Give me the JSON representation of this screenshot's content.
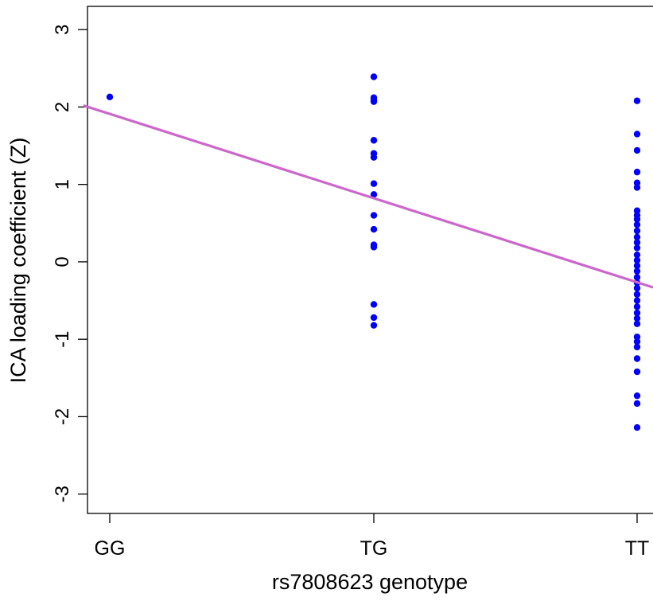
{
  "chart_data": {
    "type": "scatter",
    "title": "",
    "xlabel": "rs7808623 genotype",
    "ylabel": "ICA loading coefficient (Z)",
    "categories": [
      "GG",
      "TG",
      "TT"
    ],
    "ylim": [
      -3.25,
      3.3
    ],
    "y_ticks": [
      "-3",
      "-2",
      "-1",
      "0",
      "1",
      "2",
      "3"
    ],
    "grid": false,
    "point_color": "#0000ff",
    "line_color": "#cc66cc",
    "series": [
      {
        "points": [
          {
            "x": "GG",
            "y": 2.13
          },
          {
            "x": "TG",
            "y": 2.39
          },
          {
            "x": "TG",
            "y": 2.12
          },
          {
            "x": "TG",
            "y": 2.09
          },
          {
            "x": "TG",
            "y": 2.07
          },
          {
            "x": "TG",
            "y": 1.57
          },
          {
            "x": "TG",
            "y": 1.4
          },
          {
            "x": "TG",
            "y": 1.35
          },
          {
            "x": "TG",
            "y": 1.01
          },
          {
            "x": "TG",
            "y": 0.87
          },
          {
            "x": "TG",
            "y": 0.6
          },
          {
            "x": "TG",
            "y": 0.42
          },
          {
            "x": "TG",
            "y": 0.22
          },
          {
            "x": "TG",
            "y": 0.19
          },
          {
            "x": "TG",
            "y": -0.55
          },
          {
            "x": "TG",
            "y": -0.72
          },
          {
            "x": "TG",
            "y": -0.82
          },
          {
            "x": "TT",
            "y": 2.08
          },
          {
            "x": "TT",
            "y": 1.65
          },
          {
            "x": "TT",
            "y": 1.44
          },
          {
            "x": "TT",
            "y": 1.16
          },
          {
            "x": "TT",
            "y": 1.02
          },
          {
            "x": "TT",
            "y": 0.96
          },
          {
            "x": "TT",
            "y": 0.66
          },
          {
            "x": "TT",
            "y": 0.6
          },
          {
            "x": "TT",
            "y": 0.55
          },
          {
            "x": "TT",
            "y": 0.48
          },
          {
            "x": "TT",
            "y": 0.4
          },
          {
            "x": "TT",
            "y": 0.32
          },
          {
            "x": "TT",
            "y": 0.25
          },
          {
            "x": "TT",
            "y": 0.18
          },
          {
            "x": "TT",
            "y": 0.09
          },
          {
            "x": "TT",
            "y": 0.02
          },
          {
            "x": "TT",
            "y": -0.05
          },
          {
            "x": "TT",
            "y": -0.12
          },
          {
            "x": "TT",
            "y": -0.2
          },
          {
            "x": "TT",
            "y": -0.27
          },
          {
            "x": "TT",
            "y": -0.34
          },
          {
            "x": "TT",
            "y": -0.42
          },
          {
            "x": "TT",
            "y": -0.5
          },
          {
            "x": "TT",
            "y": -0.58
          },
          {
            "x": "TT",
            "y": -0.66
          },
          {
            "x": "TT",
            "y": -0.73
          },
          {
            "x": "TT",
            "y": -0.8
          },
          {
            "x": "TT",
            "y": -0.97
          },
          {
            "x": "TT",
            "y": -1.03
          },
          {
            "x": "TT",
            "y": -1.1
          },
          {
            "x": "TT",
            "y": -1.25
          },
          {
            "x": "TT",
            "y": -1.42
          },
          {
            "x": "TT",
            "y": -1.73
          },
          {
            "x": "TT",
            "y": -1.83
          },
          {
            "x": "TT",
            "y": -2.14
          }
        ]
      }
    ],
    "regression_line": {
      "x_start": -0.1,
      "y_start": 2.02,
      "x_end": 2.07,
      "y_end": -0.33
    }
  }
}
